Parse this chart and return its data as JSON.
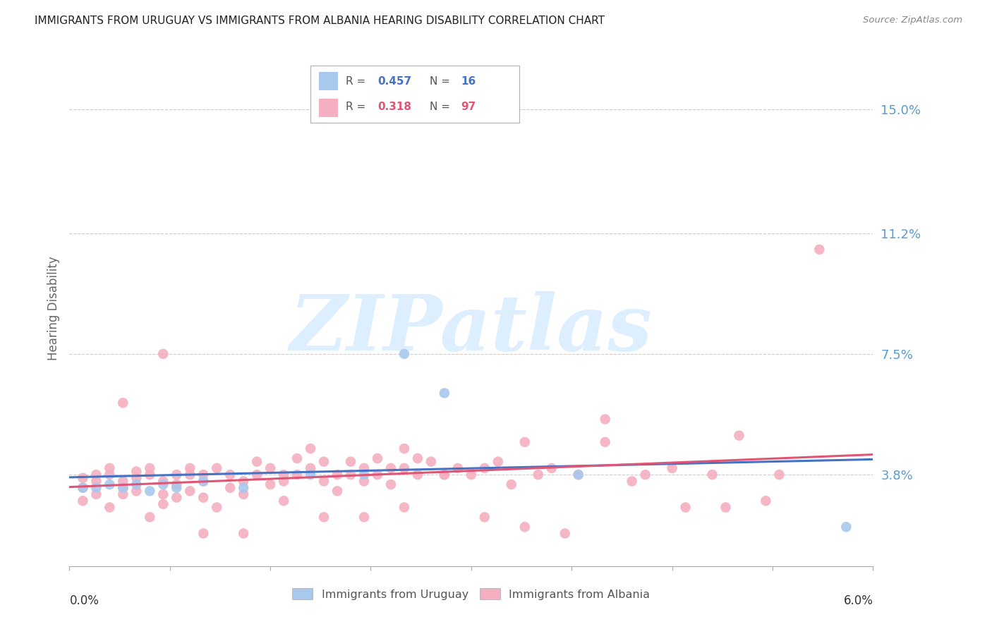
{
  "title": "IMMIGRANTS FROM URUGUAY VS IMMIGRANTS FROM ALBANIA HEARING DISABILITY CORRELATION CHART",
  "source": "Source: ZipAtlas.com",
  "ylabel": "Hearing Disability",
  "yticks": [
    0.038,
    0.075,
    0.112,
    0.15
  ],
  "ytick_labels": [
    "3.8%",
    "7.5%",
    "11.2%",
    "15.0%"
  ],
  "xlim": [
    0.0,
    0.06
  ],
  "ylim": [
    0.01,
    0.168
  ],
  "uruguay_R": 0.457,
  "uruguay_N": 16,
  "albania_R": 0.318,
  "albania_N": 97,
  "uruguay_color": "#a8c8ee",
  "albania_color": "#f4afc0",
  "uruguay_line_color": "#4472c4",
  "albania_line_color": "#e05575",
  "background_color": "#ffffff",
  "grid_color": "#cccccc",
  "title_color": "#222222",
  "label_color": "#5b9bd5",
  "watermark_color": "#ddeeff",
  "uruguay_x": [
    0.001,
    0.002,
    0.003,
    0.004,
    0.005,
    0.006,
    0.007,
    0.008,
    0.01,
    0.013,
    0.018,
    0.022,
    0.025,
    0.028,
    0.038,
    0.058
  ],
  "uruguay_y": [
    0.034,
    0.034,
    0.035,
    0.034,
    0.035,
    0.033,
    0.035,
    0.034,
    0.036,
    0.034,
    0.038,
    0.038,
    0.075,
    0.063,
    0.038,
    0.022
  ],
  "albania_x": [
    0.001,
    0.001,
    0.001,
    0.002,
    0.002,
    0.002,
    0.003,
    0.003,
    0.003,
    0.004,
    0.004,
    0.004,
    0.005,
    0.005,
    0.005,
    0.006,
    0.006,
    0.006,
    0.007,
    0.007,
    0.007,
    0.008,
    0.008,
    0.008,
    0.009,
    0.009,
    0.009,
    0.01,
    0.01,
    0.01,
    0.011,
    0.011,
    0.012,
    0.012,
    0.013,
    0.013,
    0.014,
    0.014,
    0.015,
    0.015,
    0.016,
    0.016,
    0.017,
    0.017,
    0.018,
    0.018,
    0.019,
    0.019,
    0.02,
    0.02,
    0.021,
    0.021,
    0.022,
    0.022,
    0.023,
    0.023,
    0.024,
    0.024,
    0.025,
    0.025,
    0.026,
    0.026,
    0.027,
    0.028,
    0.029,
    0.03,
    0.031,
    0.032,
    0.033,
    0.034,
    0.035,
    0.036,
    0.038,
    0.04,
    0.042,
    0.045,
    0.048,
    0.05,
    0.053,
    0.056,
    0.004,
    0.007,
    0.01,
    0.013,
    0.016,
    0.019,
    0.022,
    0.025,
    0.028,
    0.031,
    0.034,
    0.037,
    0.04,
    0.043,
    0.046,
    0.049,
    0.052
  ],
  "albania_y": [
    0.034,
    0.03,
    0.037,
    0.036,
    0.032,
    0.038,
    0.038,
    0.028,
    0.04,
    0.034,
    0.032,
    0.036,
    0.037,
    0.033,
    0.039,
    0.038,
    0.025,
    0.04,
    0.032,
    0.036,
    0.029,
    0.035,
    0.038,
    0.031,
    0.038,
    0.033,
    0.04,
    0.036,
    0.031,
    0.038,
    0.04,
    0.028,
    0.034,
    0.038,
    0.036,
    0.032,
    0.038,
    0.042,
    0.035,
    0.04,
    0.036,
    0.03,
    0.043,
    0.038,
    0.04,
    0.046,
    0.036,
    0.042,
    0.033,
    0.038,
    0.038,
    0.042,
    0.04,
    0.036,
    0.043,
    0.038,
    0.04,
    0.035,
    0.046,
    0.04,
    0.043,
    0.038,
    0.042,
    0.038,
    0.04,
    0.038,
    0.04,
    0.042,
    0.035,
    0.048,
    0.038,
    0.04,
    0.038,
    0.048,
    0.036,
    0.04,
    0.038,
    0.05,
    0.038,
    0.107,
    0.06,
    0.075,
    0.02,
    0.02,
    0.038,
    0.025,
    0.025,
    0.028,
    0.038,
    0.025,
    0.022,
    0.02,
    0.055,
    0.038,
    0.028,
    0.028,
    0.03
  ]
}
